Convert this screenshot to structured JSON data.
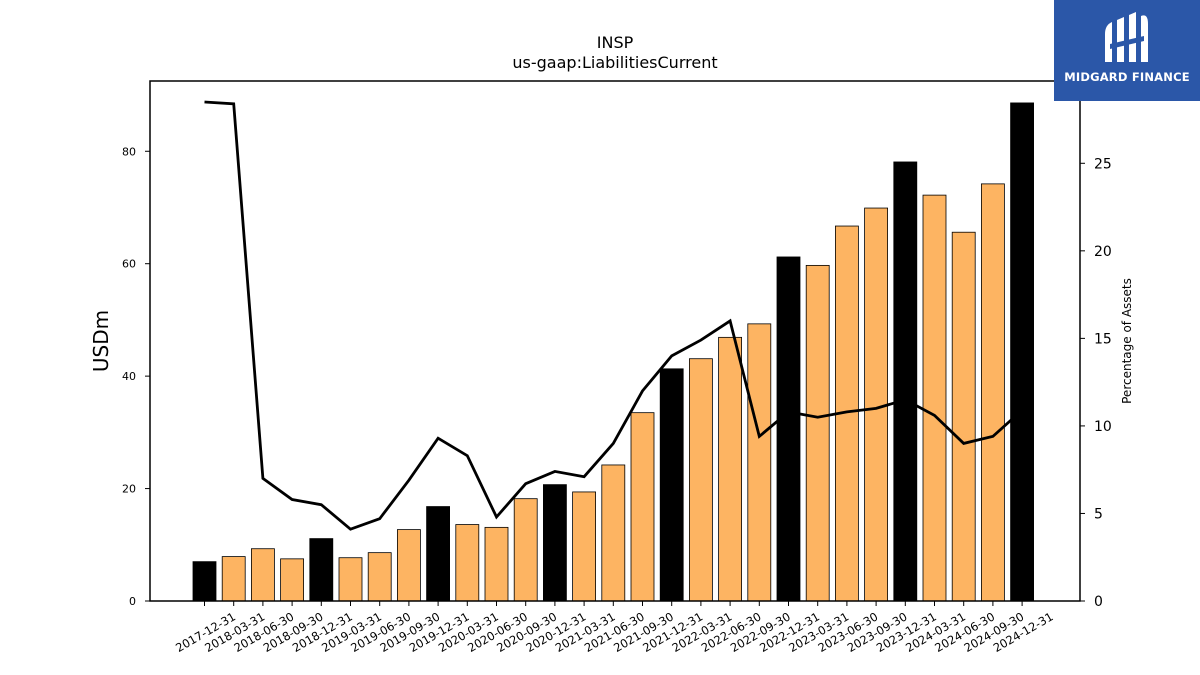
{
  "logo": {
    "text": "MIDGARD FINANCE",
    "background": "#2b57a8"
  },
  "chart_data": {
    "type": "bar",
    "title": "INSP",
    "subtitle": "us-gaap:LiabilitiesCurrent",
    "ylabel": "USDm",
    "y2label": "Percentage of Assets",
    "ylim": [
      0,
      92.5
    ],
    "y2lim": [
      0,
      29.7
    ],
    "yticks": [
      0,
      20,
      40,
      60,
      80
    ],
    "y2ticks": [
      0,
      5,
      10,
      15,
      20,
      25
    ],
    "colors": {
      "annual": "#000000",
      "quarterly": "#fdb462",
      "line": "#000000"
    },
    "categories": [
      "2017-12-31",
      "2018-03-31",
      "2018-06-30",
      "2018-09-30",
      "2018-12-31",
      "2019-03-31",
      "2019-06-30",
      "2019-09-30",
      "2019-12-31",
      "2020-03-31",
      "2020-06-30",
      "2020-09-30",
      "2020-12-31",
      "2021-03-31",
      "2021-06-30",
      "2021-09-30",
      "2021-12-31",
      "2022-03-31",
      "2022-06-30",
      "2022-09-30",
      "2022-12-31",
      "2023-03-31",
      "2023-06-30",
      "2023-09-30",
      "2023-12-31",
      "2024-03-31",
      "2024-06-30",
      "2024-09-30",
      "2024-12-31"
    ],
    "series": [
      {
        "type": "bar",
        "values": [
          7.0,
          7.9,
          9.3,
          7.5,
          11.1,
          7.7,
          8.6,
          12.7,
          16.8,
          13.6,
          13.1,
          18.2,
          20.7,
          19.4,
          24.2,
          33.5,
          41.3,
          43.1,
          46.9,
          49.3,
          61.2,
          59.7,
          66.7,
          69.9,
          78.1,
          72.2,
          65.6,
          74.2,
          88.6
        ],
        "annual": [
          true,
          false,
          false,
          false,
          true,
          false,
          false,
          false,
          true,
          false,
          false,
          false,
          true,
          false,
          false,
          false,
          true,
          false,
          false,
          false,
          true,
          false,
          false,
          false,
          true,
          false,
          false,
          false,
          true
        ]
      },
      {
        "type": "line",
        "axis": "right",
        "values": [
          28.5,
          28.4,
          7.0,
          5.8,
          5.5,
          4.1,
          4.7,
          6.9,
          9.3,
          8.3,
          4.8,
          6.7,
          7.4,
          7.1,
          9.0,
          12.0,
          14.0,
          14.9,
          16.0,
          9.4,
          10.8,
          10.5,
          10.8,
          11.0,
          11.5,
          10.6,
          9.0,
          9.4,
          10.9
        ]
      }
    ]
  }
}
